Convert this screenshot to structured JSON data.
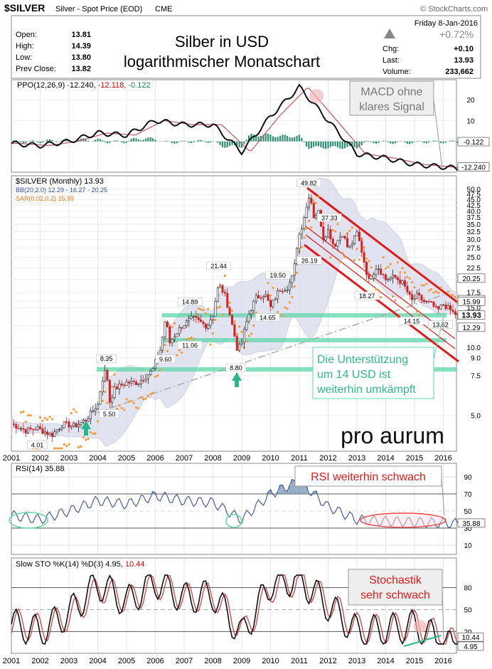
{
  "header": {
    "symbol": "$SILVER",
    "description": "Silver - Spot Price (EOD)",
    "exchange": "CME",
    "copyright": "© StockCharts.com",
    "date": "Friday  8-Jan-2016",
    "ohlc": [
      {
        "label": "Open:",
        "value": "13.81"
      },
      {
        "label": "High:",
        "value": "14.39"
      },
      {
        "label": "Low:",
        "value": "13.80"
      },
      {
        "label": "Prev Close:",
        "value": "13.82"
      }
    ],
    "change_pct": "+0.72%",
    "stats": [
      {
        "label": "Chg:",
        "value": "+0.10"
      },
      {
        "label": "Last:",
        "value": "13.93"
      },
      {
        "label": "Volume:",
        "value": "233,662"
      }
    ],
    "title_line1": "Silber in USD",
    "title_line2": "logarithmischer Monatschart"
  },
  "ppo_panel": {
    "legend_prefix": "PPO(12,26,9)",
    "legend_v1": "-12.240,",
    "legend_v2": "-12.118,",
    "legend_v3": "-0.122",
    "note_line1": "MACD ohne",
    "note_line2": "klares Signal",
    "axis_ticks": [
      "20",
      "10",
      "0"
    ],
    "tags": [
      "-0.122",
      "-12.240"
    ]
  },
  "price_panel": {
    "legend_main": "$SILVER (Monthly) 13.93",
    "legend_bb": "BB(20,2.0) 12.29 - 16.27 - 20.25",
    "legend_sar": "SAR(0.02,0.2) 15.99",
    "axis_ticks": [
      "50.0",
      "47.5",
      "45.0",
      "42.5",
      "40.0",
      "37.5",
      "35.0",
      "32.5",
      "30.0",
      "27.5",
      "25.0",
      "22.5",
      "20.0",
      "17.5",
      "16.0",
      "15.0",
      "12.5",
      "10.0",
      "9.0",
      "7.5",
      "5.0"
    ],
    "tags": [
      "20.25",
      "16.27",
      "15.99",
      "13.93",
      "12.29"
    ],
    "annotations": [
      "49.82",
      "37.33",
      "26.19",
      "21.44",
      "19.50",
      "18.27",
      "14.89",
      "14.65",
      "14.15",
      "13.62",
      "11.06",
      "9.60",
      "8.35",
      "8.80",
      "5.50",
      "4.01"
    ],
    "note_line1": "Die Unterstützung",
    "note_line2": "um 14 USD ist",
    "note_line3": "weiterhin umkämpft",
    "logo": "pro aurum"
  },
  "rsi_panel": {
    "legend": "RSI(14) 35.88",
    "note": "RSI weiterhin schwach",
    "axis_ticks": [
      "90",
      "70",
      "50",
      "30",
      "10"
    ],
    "tag": "35.88"
  },
  "sto_panel": {
    "legend_prefix": "Slow STO %K(14) %D(3)",
    "legend_k": "4.95,",
    "legend_d": "10.44",
    "note_line1": "Stochastik",
    "note_line2": "sehr schwach",
    "axis_ticks": [
      "80",
      "50",
      "20"
    ],
    "tags": [
      "10.44",
      "4.95"
    ]
  },
  "x_axis_years": [
    "2001",
    "2002",
    "2003",
    "2004",
    "2005",
    "2006",
    "2007",
    "2008",
    "2009",
    "2010",
    "2011",
    "2012",
    "2013",
    "2014",
    "2015",
    "2016"
  ],
  "chart_data": {
    "type": "line",
    "title": "Silber in USD logarithmischer Monatschart",
    "x": [
      "2001",
      "2002",
      "2003",
      "2004",
      "2005",
      "2006",
      "2007",
      "2008",
      "2009",
      "2010",
      "2011",
      "2012",
      "2013",
      "2014",
      "2015",
      "2016"
    ],
    "y_scale": "log",
    "series": [
      {
        "name": "$SILVER (Monthly)",
        "values": [
          4.4,
          4.5,
          4.8,
          6.8,
          7.3,
          12.0,
          14.0,
          15.5,
          11.3,
          19.0,
          37.0,
          31.0,
          23.0,
          19.5,
          16.0,
          13.93
        ]
      }
    ],
    "ppo": [
      -1.0,
      -2.0,
      0.0,
      4.0,
      3.0,
      10.0,
      8.0,
      8.0,
      -5.0,
      12.0,
      26.0,
      10.0,
      -6.0,
      -8.0,
      -11.0,
      -12.24
    ],
    "rsi": [
      45,
      40,
      50,
      62,
      58,
      68,
      62,
      60,
      40,
      70,
      85,
      55,
      40,
      38,
      37,
      35.88
    ],
    "stoch_k": [
      30,
      20,
      45,
      85,
      60,
      88,
      65,
      70,
      15,
      85,
      92,
      55,
      20,
      22,
      28,
      4.95
    ],
    "stoch_d": [
      32,
      24,
      42,
      80,
      62,
      85,
      66,
      68,
      20,
      80,
      90,
      58,
      24,
      24,
      30,
      10.44
    ]
  }
}
